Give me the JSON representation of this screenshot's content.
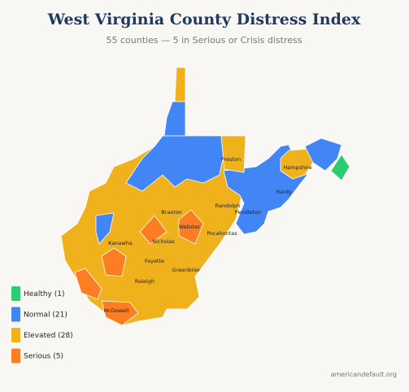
{
  "header": {
    "title": "West Virginia County Distress Index",
    "subtitle": "55 counties — 5 in Serious or Crisis distress"
  },
  "legend": [
    {
      "label": "Healthy (1)",
      "color": "#2ecc71"
    },
    {
      "label": "Normal (21)",
      "color": "#4285f4"
    },
    {
      "label": "Elevated (28)",
      "color": "#f0b21c"
    },
    {
      "label": "Serious (5)",
      "color": "#fd7e22"
    }
  ],
  "counties": [
    "Preston",
    "Hampshire",
    "Hardy",
    "Randolph",
    "Pendleton",
    "Braxton",
    "Webster",
    "Pocahontas",
    "Kanawha",
    "Nicholas",
    "Fayette",
    "Greenbrier",
    "Raleigh",
    "McDowell"
  ],
  "footer": {
    "source": "americandefault.org"
  }
}
